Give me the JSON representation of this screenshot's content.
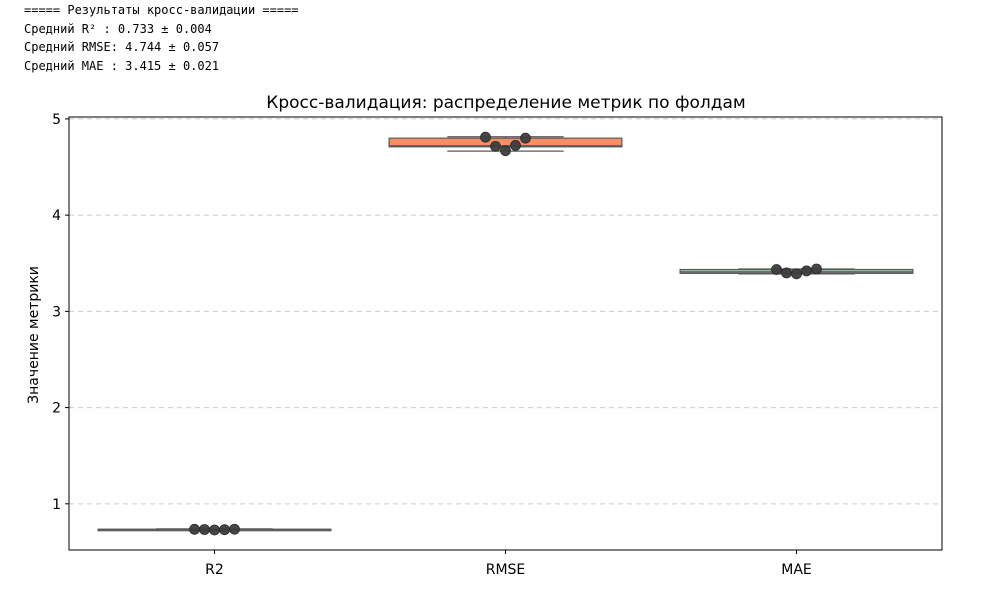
{
  "console": {
    "lines": [
      "===== Результаты кросс-валидации =====",
      "Средний R² : 0.733 ± 0.004",
      "Средний RMSE: 4.744 ± 0.057",
      "Средний MAE : 3.415 ± 0.021"
    ]
  },
  "chart_data": {
    "type": "box",
    "title": "Кросс-валидация: распределение метрик по фолдам",
    "xlabel": "",
    "ylabel": "Значение метрики",
    "ylim": [
      0.52,
      5.02
    ],
    "yticks": [
      1,
      2,
      3,
      4,
      5
    ],
    "grid": "y-dashed",
    "categories": [
      "R2",
      "RMSE",
      "MAE"
    ],
    "boxes": [
      {
        "category": "R2",
        "color": "#66c2a5",
        "min": 0.725,
        "q1": 0.73,
        "median": 0.733,
        "q3": 0.736,
        "max": 0.74,
        "points": [
          0.735,
          0.733,
          0.728,
          0.731,
          0.736
        ]
      },
      {
        "category": "RMSE",
        "color": "#fc8d62",
        "min": 4.665,
        "q1": 4.71,
        "median": 4.72,
        "q3": 4.8,
        "max": 4.815,
        "points": [
          4.81,
          4.715,
          4.67,
          4.725,
          4.8
        ]
      },
      {
        "category": "MAE",
        "color": "#8dcb9b",
        "min": 3.39,
        "q1": 3.395,
        "median": 3.41,
        "q3": 3.435,
        "max": 3.44,
        "points": [
          3.435,
          3.4,
          3.39,
          3.42,
          3.44
        ]
      }
    ]
  }
}
